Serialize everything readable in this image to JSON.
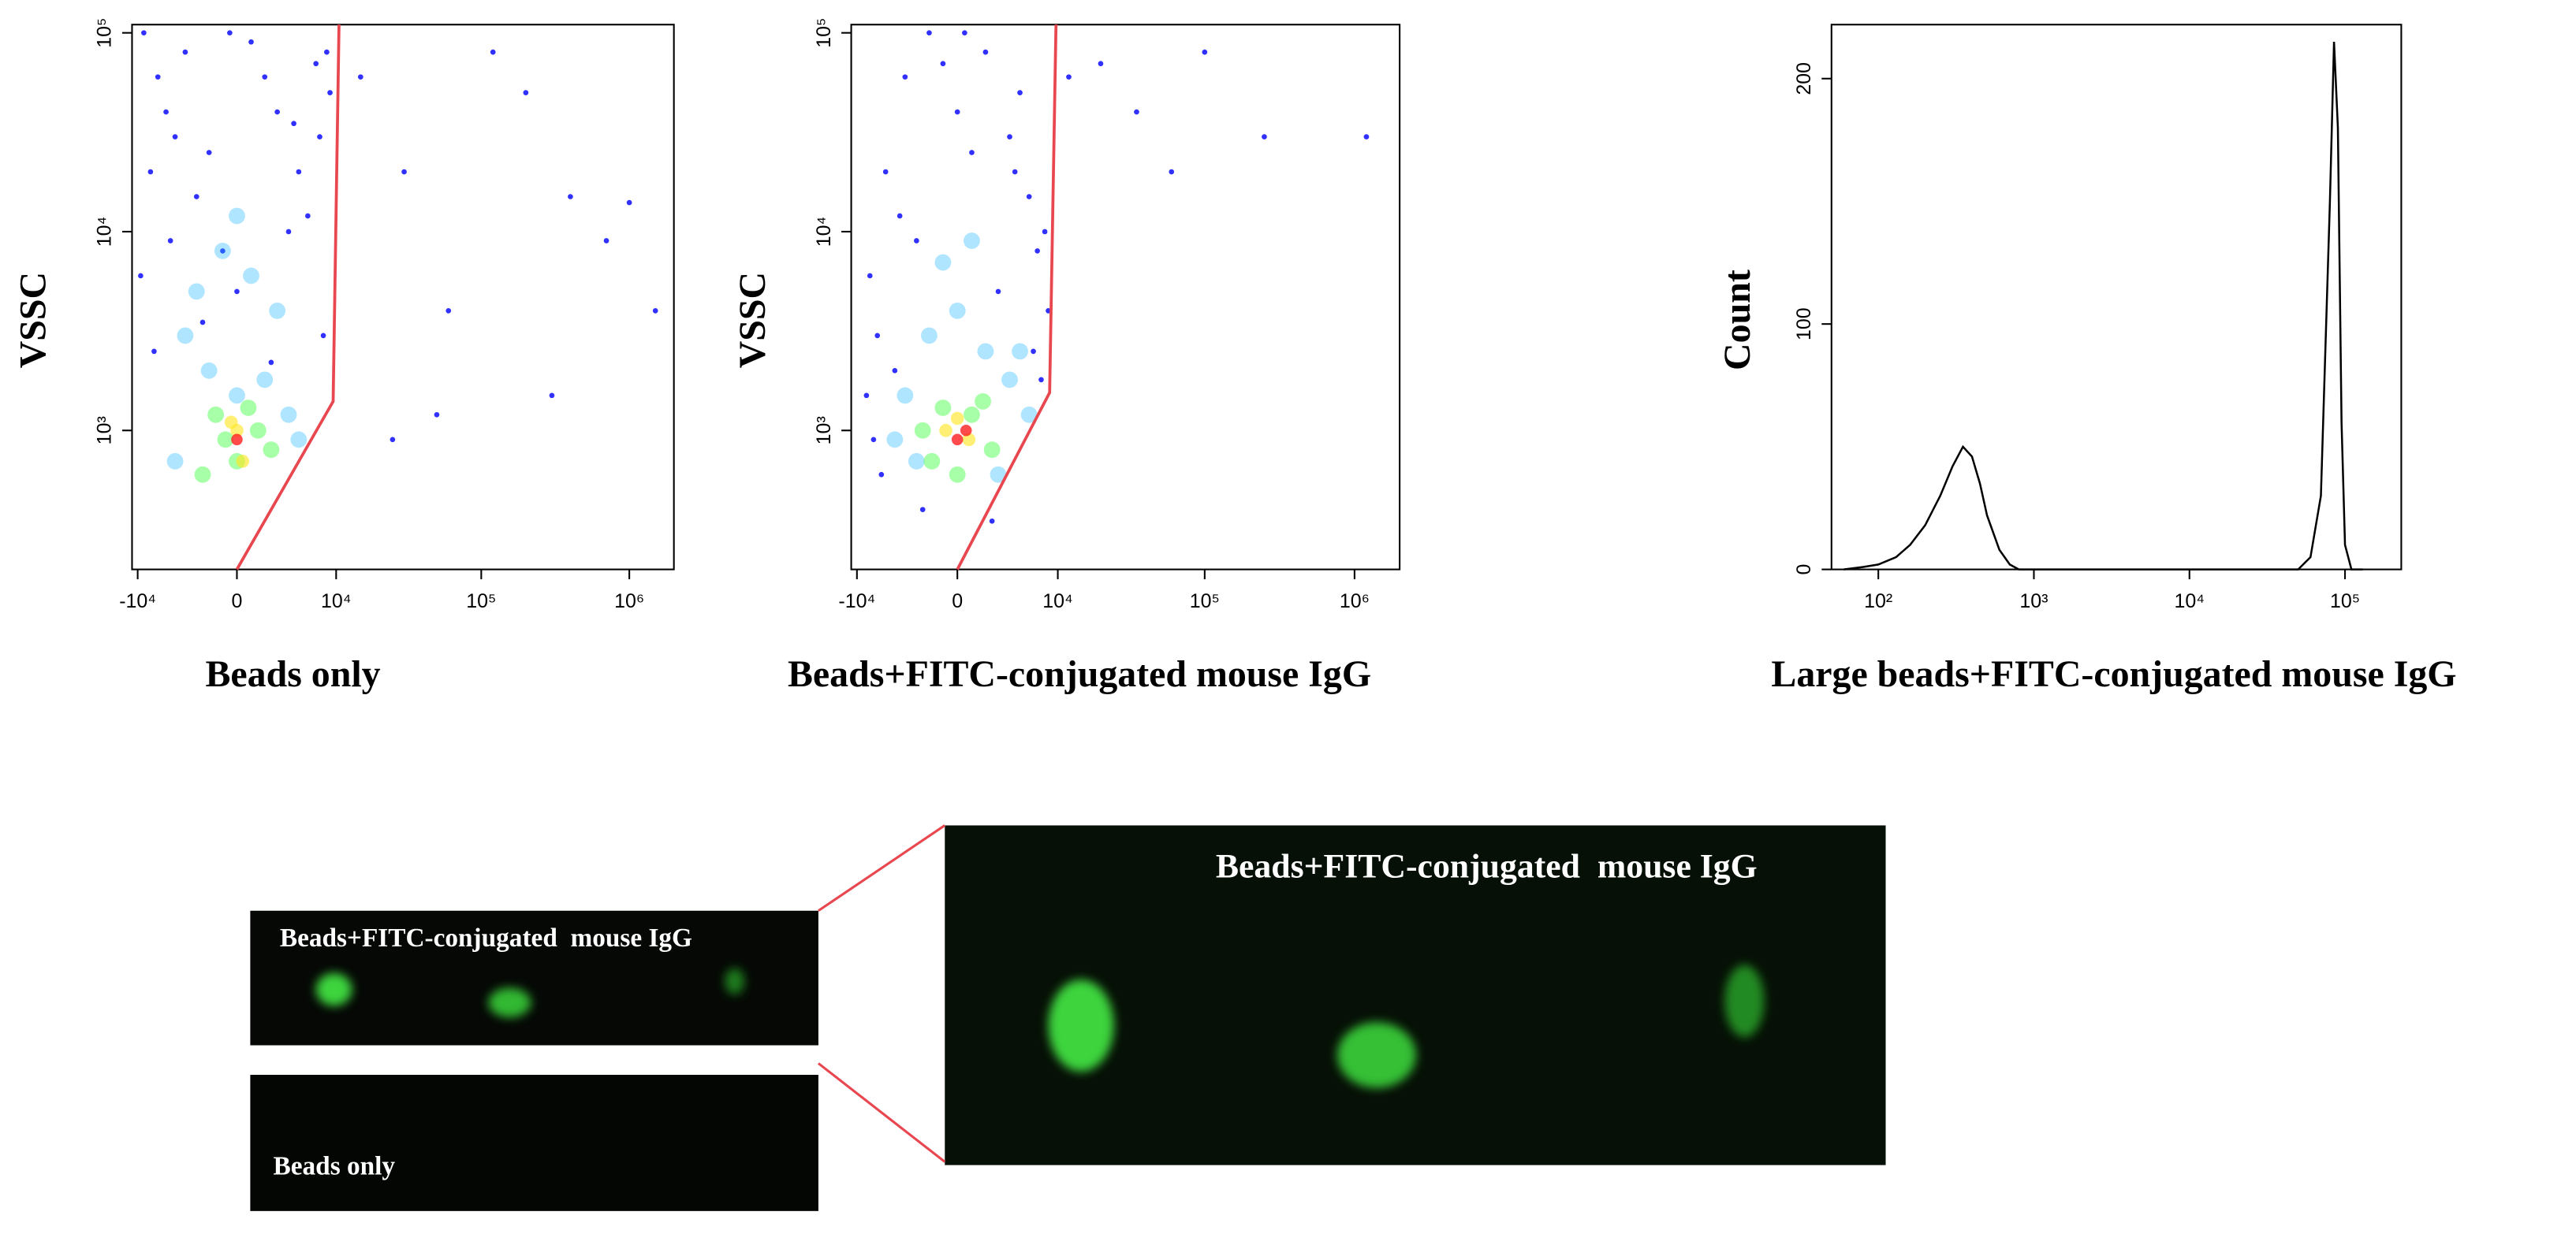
{
  "chart_data": [
    {
      "type": "scatter",
      "xlabel": "Beads only",
      "ylabel": "VSSC",
      "xscale": "asinh",
      "yscale": "log",
      "xlim": [
        -11000,
        2000000
      ],
      "ylim": [
        200,
        110000
      ],
      "xticks": [
        {
          "value": -10000,
          "label": "-10⁴"
        },
        0,
        {
          "value": 10000,
          "label": "10⁴"
        },
        {
          "value": 100000,
          "label": "10⁵"
        },
        {
          "value": 1000000,
          "label": "10⁶"
        }
      ],
      "yticks": [
        {
          "value": 1000,
          "label": "10³"
        },
        {
          "value": 10000,
          "label": "10⁴"
        },
        {
          "value": 100000,
          "label": "10⁵"
        }
      ],
      "series": [
        {
          "color": "#1a1aff",
          "x": [
            -9000,
            -7000,
            -5000,
            -3000,
            -1000,
            1000,
            3000,
            5000,
            7000,
            9000,
            -8000,
            -4000,
            0,
            4000,
            8000,
            -6000,
            -2000,
            2000,
            6000,
            -9500,
            -5500,
            -500,
            4500,
            8500,
            -7500,
            -2500,
            2500,
            7500,
            15000,
            30000,
            60000,
            120000,
            200000,
            400000,
            700000,
            1000000,
            1500000,
            50000,
            25000,
            300000
          ],
          "y": [
            100000,
            60000,
            30000,
            15000,
            8000,
            90000,
            40000,
            20000,
            70000,
            50000,
            20000,
            80000,
            5000,
            10000,
            3000,
            40000,
            25000,
            60000,
            12000,
            6000,
            9000,
            100000,
            35000,
            80000,
            2500,
            3500,
            2200,
            30000,
            60000,
            20000,
            4000,
            80000,
            50000,
            15000,
            9000,
            14000,
            4000,
            1200,
            900,
            1500
          ]
        },
        {
          "color": "#19b4ff",
          "x": [
            -4000,
            -2000,
            0,
            2000,
            4000,
            -3000,
            3000,
            -1000,
            1000,
            5000,
            -5000,
            0
          ],
          "y": [
            3000,
            2000,
            1500,
            1800,
            1200,
            5000,
            4000,
            8000,
            6000,
            900,
            700,
            12000
          ]
        },
        {
          "color": "#3cff3c",
          "x": [
            -1500,
            1500,
            0,
            -800,
            800,
            2500,
            -2500
          ],
          "y": [
            1200,
            1000,
            700,
            900,
            1300,
            800,
            600
          ]
        },
        {
          "color": "#ffe619",
          "x": [
            -400,
            400,
            0
          ],
          "y": [
            1100,
            700,
            1000
          ]
        },
        {
          "color": "#ff1e1e",
          "x": [
            0
          ],
          "y": [
            900
          ]
        }
      ],
      "gate": {
        "color": "#e8474f",
        "x": [
          0,
          9500,
          10500
        ],
        "y": [
          200,
          1400,
          110000
        ]
      }
    },
    {
      "type": "scatter",
      "xlabel": "Beads+FITC-conjugated mouse IgG",
      "ylabel": "VSSC",
      "xscale": "asinh",
      "yscale": "log",
      "xlim": [
        -11000,
        2000000
      ],
      "ylim": [
        200,
        110000
      ],
      "xticks": [
        {
          "value": -10000,
          "label": "-10⁴"
        },
        0,
        {
          "value": 10000,
          "label": "10⁴"
        },
        {
          "value": 100000,
          "label": "10⁵"
        },
        {
          "value": 1000000,
          "label": "10⁶"
        }
      ],
      "yticks": [
        {
          "value": 1000,
          "label": "10³"
        },
        {
          "value": 10000,
          "label": "10⁴"
        },
        {
          "value": 100000,
          "label": "10⁵"
        }
      ],
      "series": [
        {
          "color": "#1a1aff",
          "x": [
            -8000,
            -6000,
            -4000,
            -2000,
            0,
            2000,
            4000,
            6000,
            8000,
            -7000,
            -3000,
            1000,
            5000,
            -5000,
            -1000,
            3000,
            7000,
            -8500,
            -4500,
            500,
            4500,
            8500,
            12000,
            20000,
            35000,
            60000,
            100000,
            250000,
            1200000,
            -6500,
            -2500,
            2500,
            6500,
            -7500,
            7500
          ],
          "y": [
            6000,
            20000,
            60000,
            100000,
            40000,
            80000,
            30000,
            15000,
            10000,
            3000,
            9000,
            25000,
            50000,
            2000,
            70000,
            5000,
            8000,
            1500,
            12000,
            100000,
            20000,
            4000,
            60000,
            70000,
            40000,
            20000,
            80000,
            30000,
            30000,
            600,
            400,
            350,
            2500,
            900,
            1800
          ]
        },
        {
          "color": "#19b4ff",
          "x": [
            -4000,
            -2000,
            0,
            2000,
            4000,
            6000,
            -3000,
            3000,
            -1000,
            1000,
            -5000,
            5000
          ],
          "y": [
            1500,
            3000,
            4000,
            2500,
            1800,
            1200,
            700,
            600,
            7000,
            9000,
            900,
            2500
          ]
        },
        {
          "color": "#3cff3c",
          "x": [
            -2500,
            -1000,
            1000,
            2500,
            0,
            -1800,
            1800
          ],
          "y": [
            1000,
            1300,
            1200,
            800,
            600,
            700,
            1400
          ]
        },
        {
          "color": "#ffe619",
          "x": [
            -800,
            800,
            0
          ],
          "y": [
            1000,
            900,
            1150
          ]
        },
        {
          "color": "#ff1e1e",
          "x": [
            0,
            600
          ],
          "y": [
            900,
            1000
          ]
        }
      ],
      "gate": {
        "color": "#e8474f",
        "x": [
          0,
          8700,
          9700
        ],
        "y": [
          200,
          1550,
          110000
        ]
      }
    },
    {
      "type": "line",
      "xlabel": "Large beads+FITC-conjugated mouse IgG",
      "ylabel": "Count",
      "xscale": "log",
      "xlim": [
        50,
        230000
      ],
      "ylim": [
        0,
        222
      ],
      "xticks": [
        {
          "value": 100,
          "label": "10²"
        },
        {
          "value": 1000,
          "label": "10³"
        },
        {
          "value": 10000,
          "label": "10⁴"
        },
        {
          "value": 100000,
          "label": "10⁵"
        }
      ],
      "yticks": [
        0,
        100,
        200
      ],
      "series": [
        {
          "color": "#000000",
          "x": [
            60,
            80,
            100,
            130,
            160,
            200,
            250,
            300,
            350,
            400,
            450,
            500,
            600,
            700,
            800,
            1000,
            10000,
            50000,
            60000,
            70000,
            80000,
            85000,
            90000,
            95000,
            100000,
            110000,
            130000
          ],
          "values": [
            0,
            1,
            2,
            5,
            10,
            18,
            30,
            42,
            50,
            46,
            35,
            22,
            8,
            2,
            0,
            0,
            0,
            0,
            5,
            30,
            150,
            215,
            180,
            60,
            10,
            0,
            0
          ]
        }
      ]
    }
  ],
  "images": {
    "panels": [
      {
        "label": "Beads+FITC-conjugated  mouse IgG"
      },
      {
        "label": "Beads only"
      },
      {
        "label": "Beads+FITC-conjugated  mouse IgG"
      }
    ]
  }
}
